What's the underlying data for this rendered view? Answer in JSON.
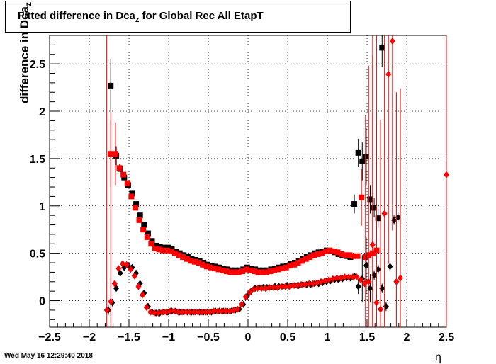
{
  "title": {
    "text": "Fitted difference in Dca",
    "subscript": "z",
    "suffix": " for Global Rec All EtapT"
  },
  "timestamp": "Wed May 16 12:29:40 2018",
  "colors": {
    "series_black": "#000000",
    "series_red": "#ff0000",
    "grid": "#000000"
  },
  "chart_data": {
    "type": "scatter",
    "title": "Fitted difference in Dca_z for Global Rec All EtapT",
    "xlabel": "η",
    "ylabel": "difference in Dca",
    "ylabel_subscript": "z",
    "xlim": [
      -2.5,
      2.5
    ],
    "ylim": [
      -0.28,
      2.8
    ],
    "xticks": [
      -2.5,
      -2,
      -1.5,
      -1,
      -0.5,
      0,
      0.5,
      1,
      1.5,
      2,
      2.5
    ],
    "xtick_labels": [
      "−2.5",
      "−2",
      "−1.5",
      "−1",
      "−0.5",
      "0",
      "0.5",
      "1",
      "1.5",
      "2",
      "2.5"
    ],
    "yticks": [
      0,
      0.5,
      1,
      1.5,
      2,
      2.5
    ],
    "ytick_labels": [
      "0",
      "0.5",
      "1",
      "1.5",
      "2",
      "2.5"
    ],
    "grid": true,
    "series": [
      {
        "marker": "square",
        "color": "#000000",
        "x": [
          -1.73,
          -1.66,
          -1.61,
          -1.56,
          -1.51,
          -1.46,
          -1.41,
          -1.36,
          -1.31,
          -1.26,
          -1.21,
          -1.16,
          -1.11,
          -1.06,
          -1.01,
          -0.96,
          -0.91,
          -0.86,
          -0.81,
          -0.76,
          -0.71,
          -0.66,
          -0.61,
          -0.56,
          -0.51,
          -0.46,
          -0.41,
          -0.36,
          -0.31,
          -0.26,
          -0.21,
          -0.16,
          -0.11,
          -0.06,
          -0.01,
          0.04,
          0.09,
          0.14,
          0.19,
          0.24,
          0.29,
          0.34,
          0.39,
          0.44,
          0.49,
          0.54,
          0.59,
          0.64,
          0.69,
          0.74,
          0.79,
          0.84,
          0.89,
          0.94,
          0.99,
          1.04,
          1.09,
          1.14,
          1.19,
          1.24,
          1.29,
          1.34,
          1.39,
          1.44,
          1.49,
          1.54,
          1.59,
          1.64,
          1.69
        ],
        "y": [
          2.27,
          1.53,
          1.39,
          1.3,
          1.22,
          1.13,
          1.02,
          0.9,
          0.8,
          0.71,
          0.63,
          0.58,
          0.57,
          0.56,
          0.56,
          0.55,
          0.52,
          0.5,
          0.48,
          0.46,
          0.44,
          0.43,
          0.42,
          0.4,
          0.38,
          0.37,
          0.36,
          0.35,
          0.34,
          0.33,
          0.32,
          0.32,
          0.32,
          0.33,
          0.35,
          0.34,
          0.33,
          0.32,
          0.32,
          0.32,
          0.33,
          0.34,
          0.35,
          0.36,
          0.37,
          0.39,
          0.4,
          0.42,
          0.44,
          0.46,
          0.48,
          0.5,
          0.51,
          0.52,
          0.53,
          0.52,
          0.51,
          0.49,
          0.48,
          0.47,
          0.46,
          1.02,
          1.56,
          1.47,
          1.52,
          1.07,
          0.98,
          0.87,
          2.67
        ],
        "yerr": [
          0.28,
          0.1,
          0.03,
          0.02,
          0.02,
          0.02,
          0.02,
          0.02,
          0.02,
          0.02,
          0.01,
          0.01,
          0.01,
          0.01,
          0.01,
          0.01,
          0.01,
          0.01,
          0.01,
          0.01,
          0.01,
          0.01,
          0.01,
          0.01,
          0.01,
          0.01,
          0.01,
          0.01,
          0.01,
          0.01,
          0.01,
          0.01,
          0.01,
          0.01,
          0.01,
          0.01,
          0.01,
          0.01,
          0.01,
          0.01,
          0.01,
          0.01,
          0.01,
          0.01,
          0.01,
          0.01,
          0.01,
          0.01,
          0.01,
          0.01,
          0.01,
          0.01,
          0.01,
          0.01,
          0.01,
          0.01,
          0.01,
          0.01,
          0.01,
          0.01,
          0.02,
          0.1,
          0.15,
          0.2,
          0.3,
          0.15,
          0.1,
          0.1,
          0.2
        ]
      },
      {
        "marker": "square",
        "color": "#ff0000",
        "x": [
          -1.73,
          -1.67,
          -1.62,
          -1.57,
          -1.52,
          -1.47,
          -1.42,
          -1.37,
          -1.32,
          -1.27,
          -1.22,
          -1.17,
          -1.12,
          -1.07,
          -1.02,
          -0.97,
          -0.92,
          -0.87,
          -0.82,
          -0.77,
          -0.72,
          -0.67,
          -0.62,
          -0.57,
          -0.52,
          -0.47,
          -0.42,
          -0.37,
          -0.32,
          -0.27,
          -0.22,
          -0.17,
          -0.12,
          -0.07,
          -0.02,
          0.03,
          0.08,
          0.13,
          0.18,
          0.23,
          0.28,
          0.33,
          0.38,
          0.43,
          0.48,
          0.53,
          0.58,
          0.63,
          0.68,
          0.73,
          0.78,
          0.83,
          0.88,
          0.93,
          0.98,
          1.03,
          1.08,
          1.13,
          1.18,
          1.23,
          1.28,
          1.33,
          1.38
        ],
        "y": [
          1.55,
          1.55,
          1.4,
          1.33,
          1.24,
          1.1,
          0.98,
          0.85,
          0.75,
          0.67,
          0.6,
          0.55,
          0.54,
          0.53,
          0.53,
          0.52,
          0.5,
          0.48,
          0.46,
          0.44,
          0.42,
          0.41,
          0.4,
          0.38,
          0.36,
          0.35,
          0.34,
          0.33,
          0.32,
          0.31,
          0.3,
          0.3,
          0.3,
          0.31,
          0.33,
          0.32,
          0.31,
          0.3,
          0.3,
          0.3,
          0.31,
          0.32,
          0.33,
          0.34,
          0.35,
          0.37,
          0.38,
          0.4,
          0.42,
          0.44,
          0.46,
          0.48,
          0.49,
          0.5,
          0.52,
          0.53,
          0.52,
          0.51,
          0.49,
          0.48,
          0.48,
          0.47,
          0.47
        ],
        "yerr": [
          0.35,
          0.33,
          0.04,
          0.02,
          0.02,
          0.02,
          0.02,
          0.02,
          0.02,
          0.02,
          0.01,
          0.01,
          0.01,
          0.01,
          0.01,
          0.01,
          0.01,
          0.01,
          0.01,
          0.01,
          0.01,
          0.01,
          0.01,
          0.01,
          0.01,
          0.01,
          0.01,
          0.01,
          0.01,
          0.01,
          0.01,
          0.01,
          0.01,
          0.01,
          0.01,
          0.01,
          0.01,
          0.01,
          0.01,
          0.01,
          0.01,
          0.01,
          0.01,
          0.01,
          0.01,
          0.01,
          0.01,
          0.01,
          0.01,
          0.01,
          0.01,
          0.01,
          0.01,
          0.01,
          0.01,
          0.01,
          0.01,
          0.01,
          0.01,
          0.01,
          0.01,
          0.01,
          0.01
        ]
      },
      {
        "marker": "square",
        "color": "#ff0000",
        "x": [
          1.43,
          1.48,
          1.52,
          1.57,
          1.62
        ],
        "y": [
          1.09,
          0.46,
          0.48,
          0.5,
          0.53
        ],
        "yerr": [
          0.3,
          1.5,
          2.0,
          2.5,
          2.5
        ]
      },
      {
        "marker": "diamond",
        "color": "#000000",
        "x": [
          -1.76,
          -1.71,
          -1.66,
          -1.61,
          -1.56,
          -1.51,
          -1.46,
          -1.41,
          -1.36,
          -1.31,
          -1.26,
          -1.21,
          -1.16,
          -1.11,
          -1.06,
          -1.01,
          -0.96,
          -0.91,
          -0.86,
          -0.81,
          -0.76,
          -0.71,
          -0.66,
          -0.61,
          -0.56,
          -0.51,
          -0.46,
          -0.41,
          -0.36,
          -0.31,
          -0.26,
          -0.21,
          -0.16,
          -0.11,
          -0.06,
          -0.01,
          0.04,
          0.09,
          0.14,
          0.19,
          0.24,
          0.29,
          0.34,
          0.39,
          0.44,
          0.49,
          0.54,
          0.59,
          0.64,
          0.69,
          0.74,
          0.79,
          0.84,
          0.89,
          0.94,
          0.99,
          1.04,
          1.09,
          1.14,
          1.19,
          1.24,
          1.29,
          1.34,
          1.39,
          1.44,
          1.49,
          1.54,
          1.59,
          1.64,
          1.69,
          1.74,
          1.79,
          1.84,
          1.89
        ],
        "y": [
          -0.1,
          -0.02,
          0.13,
          0.29,
          0.35,
          0.37,
          0.35,
          0.29,
          0.18,
          0.08,
          -0.06,
          -0.12,
          -0.13,
          -0.13,
          -0.12,
          -0.12,
          -0.11,
          -0.11,
          -0.12,
          -0.12,
          -0.12,
          -0.12,
          -0.12,
          -0.12,
          -0.12,
          -0.12,
          -0.12,
          -0.11,
          -0.11,
          -0.11,
          -0.11,
          -0.11,
          -0.1,
          -0.09,
          -0.04,
          0.05,
          0.1,
          0.13,
          0.14,
          0.14,
          0.14,
          0.14,
          0.15,
          0.15,
          0.15,
          0.16,
          0.16,
          0.16,
          0.16,
          0.17,
          0.17,
          0.17,
          0.18,
          0.18,
          0.19,
          0.2,
          0.21,
          0.22,
          0.22,
          0.23,
          0.24,
          0.24,
          0.26,
          0.15,
          0.23,
          0.37,
          0.13,
          0.27,
          0.33,
          0.13,
          -0.06,
          0.36,
          0.85,
          0.88
        ],
        "yerr": [
          0.05,
          0.04,
          0.02,
          0.02,
          0.01,
          0.01,
          0.01,
          0.01,
          0.01,
          0.01,
          0.01,
          0.01,
          0.01,
          0.01,
          0.01,
          0.01,
          0.01,
          0.01,
          0.01,
          0.01,
          0.01,
          0.01,
          0.01,
          0.01,
          0.01,
          0.01,
          0.01,
          0.01,
          0.01,
          0.01,
          0.01,
          0.01,
          0.01,
          0.01,
          0.01,
          0.01,
          0.01,
          0.01,
          0.01,
          0.01,
          0.01,
          0.01,
          0.01,
          0.01,
          0.01,
          0.01,
          0.01,
          0.01,
          0.01,
          0.01,
          0.01,
          0.01,
          0.01,
          0.01,
          0.01,
          0.01,
          0.01,
          0.01,
          0.01,
          0.01,
          0.01,
          0.01,
          0.02,
          0.08,
          0.25,
          0.3,
          0.15,
          0.05,
          0.05,
          0.05,
          0.05,
          0.05,
          0.05,
          0.05
        ]
      },
      {
        "marker": "diamond",
        "color": "#ff0000",
        "x": [
          -1.78,
          -1.73,
          -1.68,
          -1.63,
          -1.58,
          -1.53,
          -1.48,
          -1.43,
          -1.38,
          -1.33,
          -1.28,
          -1.23,
          -1.18,
          -1.13,
          -1.08,
          -1.03,
          -0.98,
          -0.93,
          -0.88,
          -0.83,
          -0.78,
          -0.73,
          -0.68,
          -0.63,
          -0.58,
          -0.53,
          -0.48,
          -0.43,
          -0.38,
          -0.33,
          -0.28,
          -0.23,
          -0.18,
          -0.13,
          -0.08,
          -0.03,
          0.02,
          0.07,
          0.12,
          0.17,
          0.22,
          0.27,
          0.32,
          0.37,
          0.42,
          0.47,
          0.52,
          0.57,
          0.62,
          0.67,
          0.72,
          0.77,
          0.82,
          0.87,
          0.92,
          0.97,
          1.02,
          1.07,
          1.12,
          1.17,
          1.22,
          1.27,
          1.32,
          1.37,
          1.42,
          1.47,
          1.52,
          1.57,
          1.62,
          1.67,
          1.72,
          1.77,
          1.82,
          1.87,
          1.92,
          2.5
        ],
        "y": [
          -0.1,
          -0.01,
          0.18,
          0.34,
          0.39,
          0.38,
          0.33,
          0.26,
          0.15,
          0.06,
          -0.07,
          -0.12,
          -0.13,
          -0.13,
          -0.12,
          -0.12,
          -0.11,
          -0.11,
          -0.12,
          -0.12,
          -0.12,
          -0.12,
          -0.12,
          -0.12,
          -0.12,
          -0.12,
          -0.12,
          -0.11,
          -0.11,
          -0.11,
          -0.11,
          -0.11,
          -0.1,
          -0.09,
          -0.04,
          0.04,
          0.09,
          0.12,
          0.13,
          0.13,
          0.13,
          0.14,
          0.14,
          0.14,
          0.15,
          0.15,
          0.15,
          0.16,
          0.16,
          0.17,
          0.17,
          0.18,
          0.18,
          0.19,
          0.2,
          0.21,
          0.22,
          0.23,
          0.24,
          0.24,
          0.25,
          0.25,
          0.25,
          0.25,
          0.22,
          0.18,
          0.2,
          0.59,
          -0.02,
          -0.09,
          0.92,
          2.39,
          2.74,
          0.2,
          0.24,
          1.33
        ],
        "yerr": [
          3.0,
          2.0,
          0.02,
          0.02,
          0.01,
          0.01,
          0.01,
          0.01,
          0.01,
          0.01,
          0.01,
          0.01,
          0.01,
          0.01,
          0.01,
          0.01,
          0.01,
          0.01,
          0.01,
          0.01,
          0.01,
          0.01,
          0.01,
          0.01,
          0.01,
          0.01,
          0.01,
          0.01,
          0.01,
          0.01,
          0.01,
          0.01,
          0.01,
          0.01,
          0.01,
          0.01,
          0.01,
          0.01,
          0.01,
          0.01,
          0.01,
          0.01,
          0.01,
          0.01,
          0.01,
          0.01,
          0.01,
          0.01,
          0.01,
          0.01,
          0.01,
          0.01,
          0.01,
          0.01,
          0.01,
          0.01,
          0.01,
          0.01,
          0.01,
          0.01,
          0.01,
          0.01,
          0.01,
          0.01,
          0.01,
          0.01,
          0.01,
          2.0,
          2.0,
          2.0,
          2.0,
          2.0,
          2.0,
          2.0,
          2.0,
          2.0
        ]
      }
    ]
  }
}
